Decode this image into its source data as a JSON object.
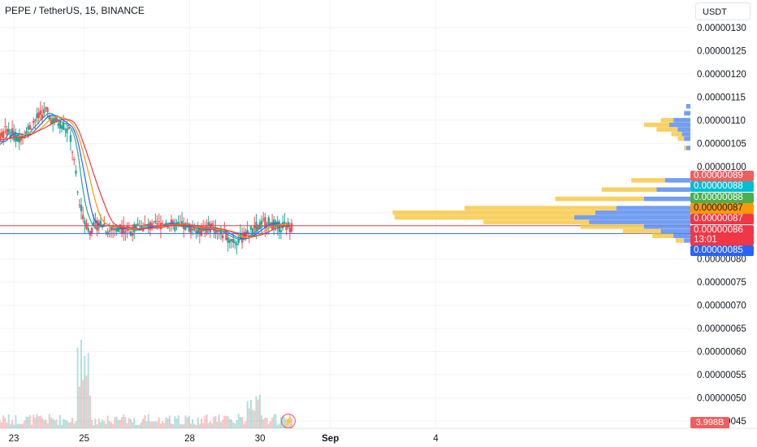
{
  "title": "PEPE / TetherUS, 15, BINANCE",
  "currency": "USDT",
  "colors": {
    "up": "#26a69a",
    "down": "#ef5350",
    "grid": "#f0f3fa"
  },
  "price_tags": [
    {
      "text": "0.00000089",
      "color": "#f15e5e"
    },
    {
      "text": "0.00000088",
      "color": "#00bcd4"
    },
    {
      "text": "0.00000088",
      "color": "#4caf50"
    },
    {
      "text": "0.00000087",
      "color": "#ff9800",
      "text_color": "#131722"
    },
    {
      "text": "0.00000087",
      "color": "#f23645"
    },
    {
      "text": "0.00000086",
      "color": "#f23645"
    },
    {
      "text": "13:01",
      "color": "#f23645"
    },
    {
      "text": "0.00000085",
      "color": "#2962ff"
    }
  ],
  "volume_label": "3.998B",
  "replay_icon": "⚡",
  "chart_data": {
    "type": "candlestick",
    "title": "PEPE / TetherUS, 15, BINANCE",
    "y_ticks": [
      "0.00000130",
      "0.00000125",
      "0.00000120",
      "0.00000115",
      "0.00000110",
      "0.00000105",
      "0.00000100",
      "0.00000080",
      "0.00000075",
      "0.00000070",
      "0.00000065",
      "0.00000060",
      "0.00000055",
      "0.00000050",
      "0.00000045"
    ],
    "ylim": [
      4.3e-07,
      1.32e-06
    ],
    "x_ticks": [
      {
        "label": "23",
        "day": 23,
        "bold": false
      },
      {
        "label": "25",
        "day": 25,
        "bold": false
      },
      {
        "label": "28",
        "day": 28,
        "bold": false
      },
      {
        "label": "30",
        "day": 30,
        "bold": false
      },
      {
        "label": "Sep",
        "day": 32,
        "bold": true
      },
      {
        "label": "4",
        "day": 35,
        "bold": false
      }
    ],
    "price_path": [
      [
        22.0,
        1.06e-06
      ],
      [
        22.2,
        1.07e-06
      ],
      [
        22.4,
        1.04e-06
      ],
      [
        22.6,
        1.06e-06
      ],
      [
        22.8,
        1.08e-06
      ],
      [
        23.1,
        1.06e-06
      ],
      [
        23.4,
        1.08e-06
      ],
      [
        23.6,
        1.1e-06
      ],
      [
        23.9,
        1.12e-06
      ],
      [
        24.1,
        1.1e-06
      ],
      [
        24.4,
        1.09e-06
      ],
      [
        24.6,
        1.07e-06
      ],
      [
        24.75,
        9.9e-07
      ],
      [
        24.85,
        9.2e-07
      ],
      [
        25.0,
        8.9e-07
      ],
      [
        25.15,
        8.6e-07
      ],
      [
        25.3,
        8.7e-07
      ],
      [
        25.5,
        8.8e-07
      ],
      [
        25.7,
        8.6e-07
      ],
      [
        26.0,
        8.7e-07
      ],
      [
        26.3,
        8.6e-07
      ],
      [
        26.6,
        8.7e-07
      ],
      [
        27.0,
        8.7e-07
      ],
      [
        27.3,
        8.8e-07
      ],
      [
        27.6,
        8.7e-07
      ],
      [
        28.0,
        8.7e-07
      ],
      [
        28.3,
        8.6e-07
      ],
      [
        28.6,
        8.7e-07
      ],
      [
        29.0,
        8.5e-07
      ],
      [
        29.3,
        8.4e-07
      ],
      [
        29.6,
        8.5e-07
      ],
      [
        29.9,
        8.7e-07
      ],
      [
        30.2,
        8.8e-07
      ],
      [
        30.5,
        8.7e-07
      ],
      [
        30.9,
        8.7e-07
      ]
    ],
    "moving_averages": [
      {
        "color": "#26a69a"
      },
      {
        "color": "#2962ff"
      },
      {
        "color": "#ff9800"
      },
      {
        "color": "#f23645"
      }
    ],
    "horizontal_lines": [
      {
        "price": 8.72e-07,
        "color": "#f23645"
      },
      {
        "price": 8.55e-07,
        "color": "#2962ff"
      }
    ],
    "volume_profile": {
      "up_color": "#5b8def",
      "down_color": "#f7c948",
      "rows": [
        [
          1.13e-06,
          0.02,
          0
        ],
        [
          1.115e-06,
          0.03,
          0
        ],
        [
          1.1e-06,
          0.08,
          0.06
        ],
        [
          1.09e-06,
          0.1,
          0.12
        ],
        [
          1.08e-06,
          0.06,
          0.1
        ],
        [
          1.07e-06,
          0.04,
          0.05
        ],
        [
          1.06e-06,
          0.03,
          0.03
        ],
        [
          1.04e-06,
          0.02,
          0.01
        ],
        [
          9.7e-07,
          0.12,
          0.16
        ],
        [
          9.5e-07,
          0.16,
          0.26
        ],
        [
          9.3e-07,
          0.22,
          0.42
        ],
        [
          9.1e-07,
          0.35,
          0.72
        ],
        [
          9e-07,
          0.45,
          0.96
        ],
        [
          8.9e-07,
          0.55,
          0.85
        ],
        [
          8.8e-07,
          0.48,
          0.5
        ],
        [
          8.7e-07,
          0.22,
          0.3
        ],
        [
          8.6e-07,
          0.14,
          0.18
        ],
        [
          8.5e-07,
          0.08,
          0.1
        ],
        [
          8.4e-07,
          0.03,
          0.04
        ]
      ]
    }
  }
}
